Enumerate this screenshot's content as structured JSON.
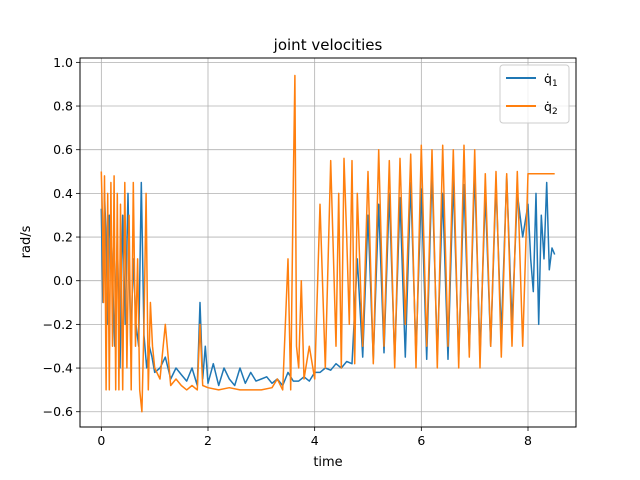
{
  "chart_data": {
    "type": "line",
    "title": "joint velocities",
    "xlabel": "time",
    "ylabel": "rad/s",
    "xlim": [
      -0.4,
      8.9
    ],
    "ylim": [
      -0.67,
      1.02
    ],
    "xticks": [
      0,
      2,
      4,
      6,
      8
    ],
    "yticks": [
      -0.6,
      -0.4,
      -0.2,
      0.0,
      0.2,
      0.4,
      0.6,
      0.8,
      1.0
    ],
    "ytick_labels": [
      "−0.6",
      "−0.4",
      "−0.2",
      "0.0",
      "0.2",
      "0.4",
      "0.6",
      "0.8",
      "1.0"
    ],
    "grid": true,
    "legend_position": "top-right",
    "series": [
      {
        "name": "q̇1",
        "legend_symbol": "q̇",
        "legend_subscript": "1",
        "color": "#1f77b4",
        "x": [
          0.0,
          0.03,
          0.06,
          0.09,
          0.12,
          0.15,
          0.2,
          0.25,
          0.3,
          0.35,
          0.4,
          0.45,
          0.5,
          0.55,
          0.6,
          0.65,
          0.7,
          0.75,
          0.8,
          0.85,
          0.9,
          0.95,
          1.0,
          1.1,
          1.2,
          1.3,
          1.4,
          1.5,
          1.6,
          1.7,
          1.8,
          1.85,
          1.9,
          1.95,
          2.0,
          2.1,
          2.2,
          2.3,
          2.4,
          2.5,
          2.6,
          2.7,
          2.8,
          2.9,
          3.0,
          3.1,
          3.2,
          3.3,
          3.4,
          3.5,
          3.6,
          3.7,
          3.8,
          3.9,
          4.0,
          4.1,
          4.2,
          4.3,
          4.4,
          4.5,
          4.6,
          4.7,
          4.8,
          4.9,
          5.0,
          5.1,
          5.2,
          5.3,
          5.4,
          5.5,
          5.6,
          5.7,
          5.8,
          5.9,
          6.0,
          6.1,
          6.2,
          6.3,
          6.4,
          6.5,
          6.6,
          6.7,
          6.8,
          6.9,
          7.0,
          7.1,
          7.2,
          7.3,
          7.4,
          7.5,
          7.6,
          7.7,
          7.8,
          7.9,
          8.0,
          8.05,
          8.1,
          8.15,
          8.2,
          8.25,
          8.3,
          8.35,
          8.4,
          8.45,
          8.5
        ],
        "y": [
          0.33,
          -0.1,
          0.4,
          0.2,
          -0.2,
          0.3,
          0.1,
          -0.3,
          0.2,
          -0.4,
          0.3,
          -0.2,
          0.4,
          -0.3,
          0.1,
          -0.2,
          -0.3,
          0.45,
          -0.25,
          -0.4,
          -0.3,
          -0.35,
          -0.42,
          -0.4,
          -0.35,
          -0.45,
          -0.4,
          -0.43,
          -0.46,
          -0.4,
          -0.48,
          -0.1,
          -0.45,
          -0.3,
          -0.47,
          -0.38,
          -0.48,
          -0.4,
          -0.45,
          -0.48,
          -0.4,
          -0.47,
          -0.42,
          -0.46,
          -0.45,
          -0.44,
          -0.47,
          -0.45,
          -0.48,
          -0.42,
          -0.46,
          -0.46,
          -0.44,
          -0.46,
          -0.42,
          -0.42,
          -0.4,
          -0.41,
          -0.38,
          -0.4,
          -0.37,
          -0.38,
          0.1,
          -0.35,
          0.3,
          -0.36,
          0.35,
          -0.33,
          0.4,
          -0.36,
          0.38,
          -0.35,
          0.45,
          -0.34,
          0.42,
          -0.36,
          0.5,
          -0.34,
          0.4,
          -0.36,
          0.46,
          -0.35,
          0.44,
          -0.32,
          0.5,
          -0.34,
          0.4,
          -0.3,
          0.45,
          -0.25,
          0.48,
          -0.2,
          0.4,
          0.2,
          0.35,
          0.1,
          -0.05,
          0.4,
          -0.2,
          0.3,
          0.1,
          0.45,
          0.05,
          0.15,
          0.12
        ]
      },
      {
        "name": "q̇2",
        "legend_symbol": "q̇",
        "legend_subscript": "2",
        "color": "#ff7f0e",
        "x": [
          0.0,
          0.02,
          0.04,
          0.06,
          0.09,
          0.12,
          0.15,
          0.18,
          0.21,
          0.24,
          0.27,
          0.3,
          0.33,
          0.36,
          0.4,
          0.44,
          0.48,
          0.52,
          0.56,
          0.6,
          0.64,
          0.68,
          0.72,
          0.76,
          0.8,
          0.84,
          0.88,
          0.92,
          0.96,
          1.0,
          1.1,
          1.2,
          1.3,
          1.4,
          1.5,
          1.6,
          1.7,
          1.8,
          1.85,
          1.9,
          2.0,
          2.2,
          2.4,
          2.6,
          2.8,
          3.0,
          3.2,
          3.3,
          3.4,
          3.5,
          3.55,
          3.6,
          3.63,
          3.66,
          3.7,
          3.75,
          3.8,
          3.9,
          4.0,
          4.1,
          4.2,
          4.3,
          4.4,
          4.45,
          4.5,
          4.55,
          4.6,
          4.65,
          4.7,
          4.75,
          4.8,
          4.9,
          5.0,
          5.1,
          5.2,
          5.3,
          5.4,
          5.5,
          5.6,
          5.7,
          5.8,
          5.9,
          6.0,
          6.1,
          6.2,
          6.3,
          6.4,
          6.5,
          6.6,
          6.7,
          6.8,
          6.9,
          7.0,
          7.1,
          7.2,
          7.3,
          7.4,
          7.5,
          7.6,
          7.7,
          7.8,
          7.9,
          8.0,
          8.2,
          8.4,
          8.5
        ],
        "y": [
          0.5,
          0.3,
          -0.1,
          0.48,
          -0.5,
          0.4,
          -0.5,
          0.45,
          -0.3,
          0.48,
          -0.5,
          0.4,
          -0.5,
          0.35,
          -0.5,
          0.45,
          -0.4,
          0.3,
          -0.5,
          0.45,
          -0.3,
          0.1,
          -0.5,
          -0.6,
          -0.2,
          0.4,
          -0.5,
          -0.1,
          -0.3,
          -0.4,
          -0.45,
          -0.2,
          -0.48,
          -0.45,
          -0.48,
          -0.5,
          -0.48,
          -0.5,
          -0.2,
          -0.48,
          -0.49,
          -0.5,
          -0.49,
          -0.5,
          -0.5,
          -0.5,
          -0.49,
          -0.45,
          -0.5,
          0.1,
          -0.5,
          0.45,
          0.94,
          -0.3,
          -0.4,
          0.0,
          -0.45,
          -0.3,
          -0.45,
          0.35,
          -0.4,
          0.55,
          -0.3,
          0.4,
          -0.4,
          0.56,
          0.2,
          -0.2,
          0.55,
          -0.38,
          0.4,
          -0.3,
          0.5,
          -0.38,
          0.6,
          -0.3,
          0.55,
          -0.4,
          0.56,
          -0.2,
          0.58,
          -0.4,
          0.62,
          -0.3,
          0.6,
          -0.4,
          0.62,
          -0.3,
          0.6,
          -0.4,
          0.62,
          -0.35,
          0.6,
          -0.4,
          0.49,
          -0.3,
          0.5,
          -0.35,
          0.49,
          -0.3,
          0.5,
          -0.3,
          0.49,
          0.49,
          0.49,
          0.49
        ]
      }
    ]
  }
}
